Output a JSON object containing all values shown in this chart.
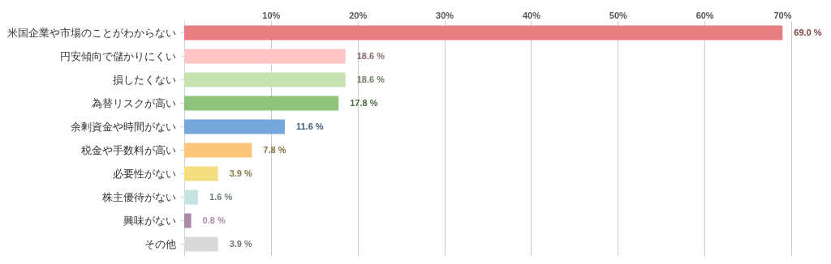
{
  "chart_data": {
    "type": "bar",
    "orientation": "horizontal",
    "categories": [
      "米国企業や市場のことがわからない",
      "円安傾向で儲かりにくい",
      "損したくない",
      "為替リスクが高い",
      "余剰資金や時間がない",
      "税金や手数料が高い",
      "必要性がない",
      "株主優待がない",
      "興味がない",
      "その他"
    ],
    "values": [
      69.0,
      18.6,
      18.6,
      17.8,
      11.6,
      7.8,
      3.9,
      1.6,
      0.8,
      3.9
    ],
    "colors": [
      "#e97c80",
      "#ffc5c5",
      "#c5e3b0",
      "#8cc57a",
      "#76a7dc",
      "#fec57a",
      "#f5de80",
      "#c5e3e3",
      "#a98aa9",
      "#d8d8d8"
    ],
    "value_labels": [
      "69.0 %",
      "18.6 %",
      "18.6 %",
      "17.8 %",
      "11.6 %",
      "7.8 %",
      "3.9 %",
      "1.6 %",
      "0.8 %",
      "3.9 %"
    ],
    "xlim": [
      0,
      70
    ],
    "xticks": [
      {
        "value": 10,
        "label": "10%"
      },
      {
        "value": 20,
        "label": "20%"
      },
      {
        "value": 30,
        "label": "30%"
      },
      {
        "value": 40,
        "label": "40%"
      },
      {
        "value": 50,
        "label": "50%"
      },
      {
        "value": 60,
        "label": "60%"
      },
      {
        "value": 70,
        "label": "70%"
      }
    ],
    "grid": "x"
  }
}
